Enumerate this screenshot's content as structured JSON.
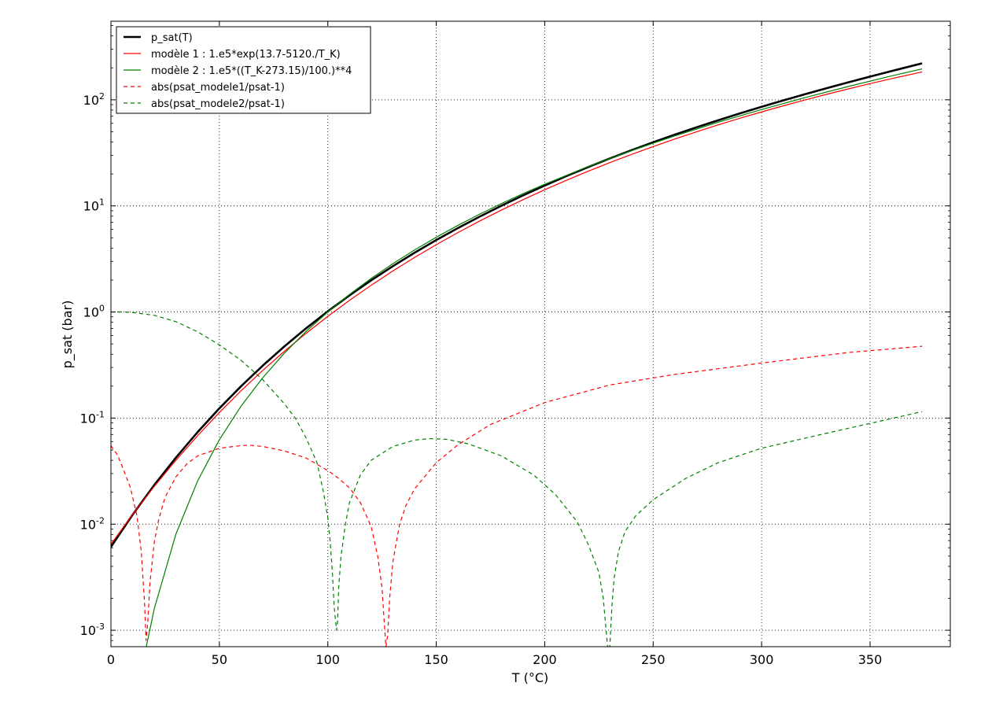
{
  "chart_data": {
    "type": "line",
    "xlabel": "T (°C)",
    "ylabel": "p_sat (bar)",
    "xlim": [
      0,
      387
    ],
    "ylim": [
      0.0007,
      550
    ],
    "yscale": "log",
    "grid": true,
    "legend_position": "top-left",
    "x_ticks": [
      0,
      50,
      100,
      150,
      200,
      250,
      300,
      350
    ],
    "y_ticks": [
      {
        "value": 0.001,
        "base": "10",
        "exp": "-3"
      },
      {
        "value": 0.01,
        "base": "10",
        "exp": "-2"
      },
      {
        "value": 0.1,
        "base": "10",
        "exp": "-1"
      },
      {
        "value": 1,
        "base": "10",
        "exp": "0"
      },
      {
        "value": 10,
        "base": "10",
        "exp": "1"
      },
      {
        "value": 100,
        "base": "10",
        "exp": "2"
      }
    ],
    "series": [
      {
        "name": "p_sat(T)",
        "color": "#000000",
        "style": "solid",
        "x": [
          0,
          10,
          20,
          30,
          40,
          50,
          60,
          70,
          80,
          90,
          100,
          110,
          120,
          130,
          140,
          150,
          160,
          170,
          180,
          190,
          200,
          210,
          220,
          230,
          240,
          250,
          260,
          270,
          280,
          290,
          300,
          310,
          320,
          330,
          340,
          350,
          360,
          374
        ],
        "y": [
          0.00611,
          0.01228,
          0.02339,
          0.04246,
          0.07384,
          0.1235,
          0.1995,
          0.312,
          0.4741,
          0.7018,
          1.0142,
          1.4338,
          1.9867,
          2.7028,
          3.6154,
          4.7616,
          6.182,
          7.922,
          10.028,
          12.552,
          15.549,
          19.077,
          23.196,
          27.971,
          33.469,
          39.762,
          46.923,
          55.03,
          64.166,
          74.418,
          85.88,
          98.65,
          112.84,
          128.58,
          146.01,
          165.29,
          186.66,
          220.6
        ]
      },
      {
        "name": "modèle 1 : 1.e5*exp(13.7-5120./T_K)",
        "color": "#ff0000",
        "style": "solid",
        "x": [
          0,
          10,
          20,
          30,
          40,
          50,
          60,
          70,
          80,
          90,
          100,
          110,
          120,
          130,
          140,
          150,
          160,
          170,
          180,
          190,
          200,
          210,
          220,
          230,
          240,
          250,
          260,
          270,
          280,
          290,
          300,
          310,
          320,
          330,
          340,
          350,
          360,
          374
        ],
        "y": [
          0.00645,
          0.0124,
          0.0227,
          0.0401,
          0.0683,
          0.1129,
          0.1808,
          0.2813,
          0.4261,
          0.6297,
          0.9096,
          1.2871,
          1.7865,
          2.4349,
          3.2636,
          4.3075,
          5.6048,
          7.197,
          9.129,
          11.445,
          14.197,
          17.432,
          21.2,
          25.56,
          30.56,
          36.25,
          42.69,
          49.92,
          58.0,
          66.97,
          76.87,
          87.76,
          99.67,
          112.63,
          126.69,
          141.88,
          158.22,
          183.0
        ]
      },
      {
        "name": "modèle 2 : 1.e5*((T_K-273.15)/100.)**4",
        "color": "#008000",
        "style": "solid",
        "x": [
          16,
          20,
          30,
          40,
          50,
          60,
          70,
          80,
          90,
          100,
          110,
          120,
          130,
          140,
          150,
          160,
          170,
          180,
          190,
          200,
          220,
          240,
          260,
          280,
          300,
          320,
          340,
          360,
          374
        ],
        "y": [
          0.000655,
          0.0016,
          0.0081,
          0.0256,
          0.0625,
          0.1296,
          0.2401,
          0.4096,
          0.6561,
          1.0,
          1.4641,
          2.0736,
          2.8561,
          3.8416,
          5.0625,
          6.5536,
          8.3521,
          10.4976,
          13.0321,
          16.0,
          23.4256,
          33.1776,
          45.6976,
          61.4656,
          81.0,
          104.8576,
          133.6336,
          167.9616,
          195.6
        ]
      },
      {
        "name": "abs(psat_modele1/psat-1)",
        "color": "#ff0000",
        "style": "dashed",
        "x": [
          0,
          3,
          6,
          9,
          12,
          14,
          15.5,
          16.2,
          17,
          18,
          20,
          22,
          25,
          30,
          35,
          40,
          50,
          60,
          64,
          70,
          80,
          90,
          100,
          105,
          110,
          115,
          120,
          123,
          125,
          126,
          126.8,
          127.6,
          128.5,
          130,
          133,
          136,
          140,
          150,
          160,
          175,
          200,
          230,
          260,
          300,
          340,
          374
        ],
        "y": [
          0.055,
          0.045,
          0.032,
          0.022,
          0.012,
          0.0055,
          0.0018,
          0.0008,
          0.0012,
          0.0028,
          0.0068,
          0.011,
          0.018,
          0.028,
          0.037,
          0.044,
          0.052,
          0.055,
          0.0555,
          0.054,
          0.049,
          0.042,
          0.032,
          0.027,
          0.022,
          0.016,
          0.0095,
          0.005,
          0.0025,
          0.0012,
          0.0007,
          0.0009,
          0.002,
          0.0044,
          0.0098,
          0.015,
          0.0215,
          0.038,
          0.056,
          0.087,
          0.14,
          0.205,
          0.258,
          0.33,
          0.415,
          0.475
        ]
      },
      {
        "name": "abs(psat_modele2/psat-1)",
        "color": "#008000",
        "style": "dashed",
        "x": [
          0,
          5,
          10,
          20,
          30,
          40,
          50,
          60,
          70,
          80,
          85,
          90,
          95,
          98,
          100,
          101,
          102,
          103,
          104,
          104.5,
          105,
          106,
          108,
          110,
          115,
          120,
          130,
          140,
          147,
          155,
          165,
          180,
          195,
          205,
          215,
          220,
          225,
          227,
          228.5,
          229.3,
          230,
          231,
          232,
          234,
          237,
          242,
          250,
          265,
          280,
          300,
          330,
          374
        ],
        "y": [
          1.0,
          0.999,
          0.99,
          0.93,
          0.81,
          0.65,
          0.49,
          0.35,
          0.23,
          0.136,
          0.1,
          0.065,
          0.038,
          0.02,
          0.0115,
          0.0072,
          0.0038,
          0.0016,
          0.001,
          0.0012,
          0.0025,
          0.0048,
          0.0097,
          0.016,
          0.029,
          0.04,
          0.054,
          0.062,
          0.064,
          0.063,
          0.057,
          0.044,
          0.029,
          0.019,
          0.0105,
          0.0065,
          0.0035,
          0.002,
          0.0009,
          0.0006,
          0.0007,
          0.0017,
          0.0031,
          0.0055,
          0.0085,
          0.012,
          0.017,
          0.027,
          0.038,
          0.052,
          0.072,
          0.115
        ]
      }
    ]
  }
}
